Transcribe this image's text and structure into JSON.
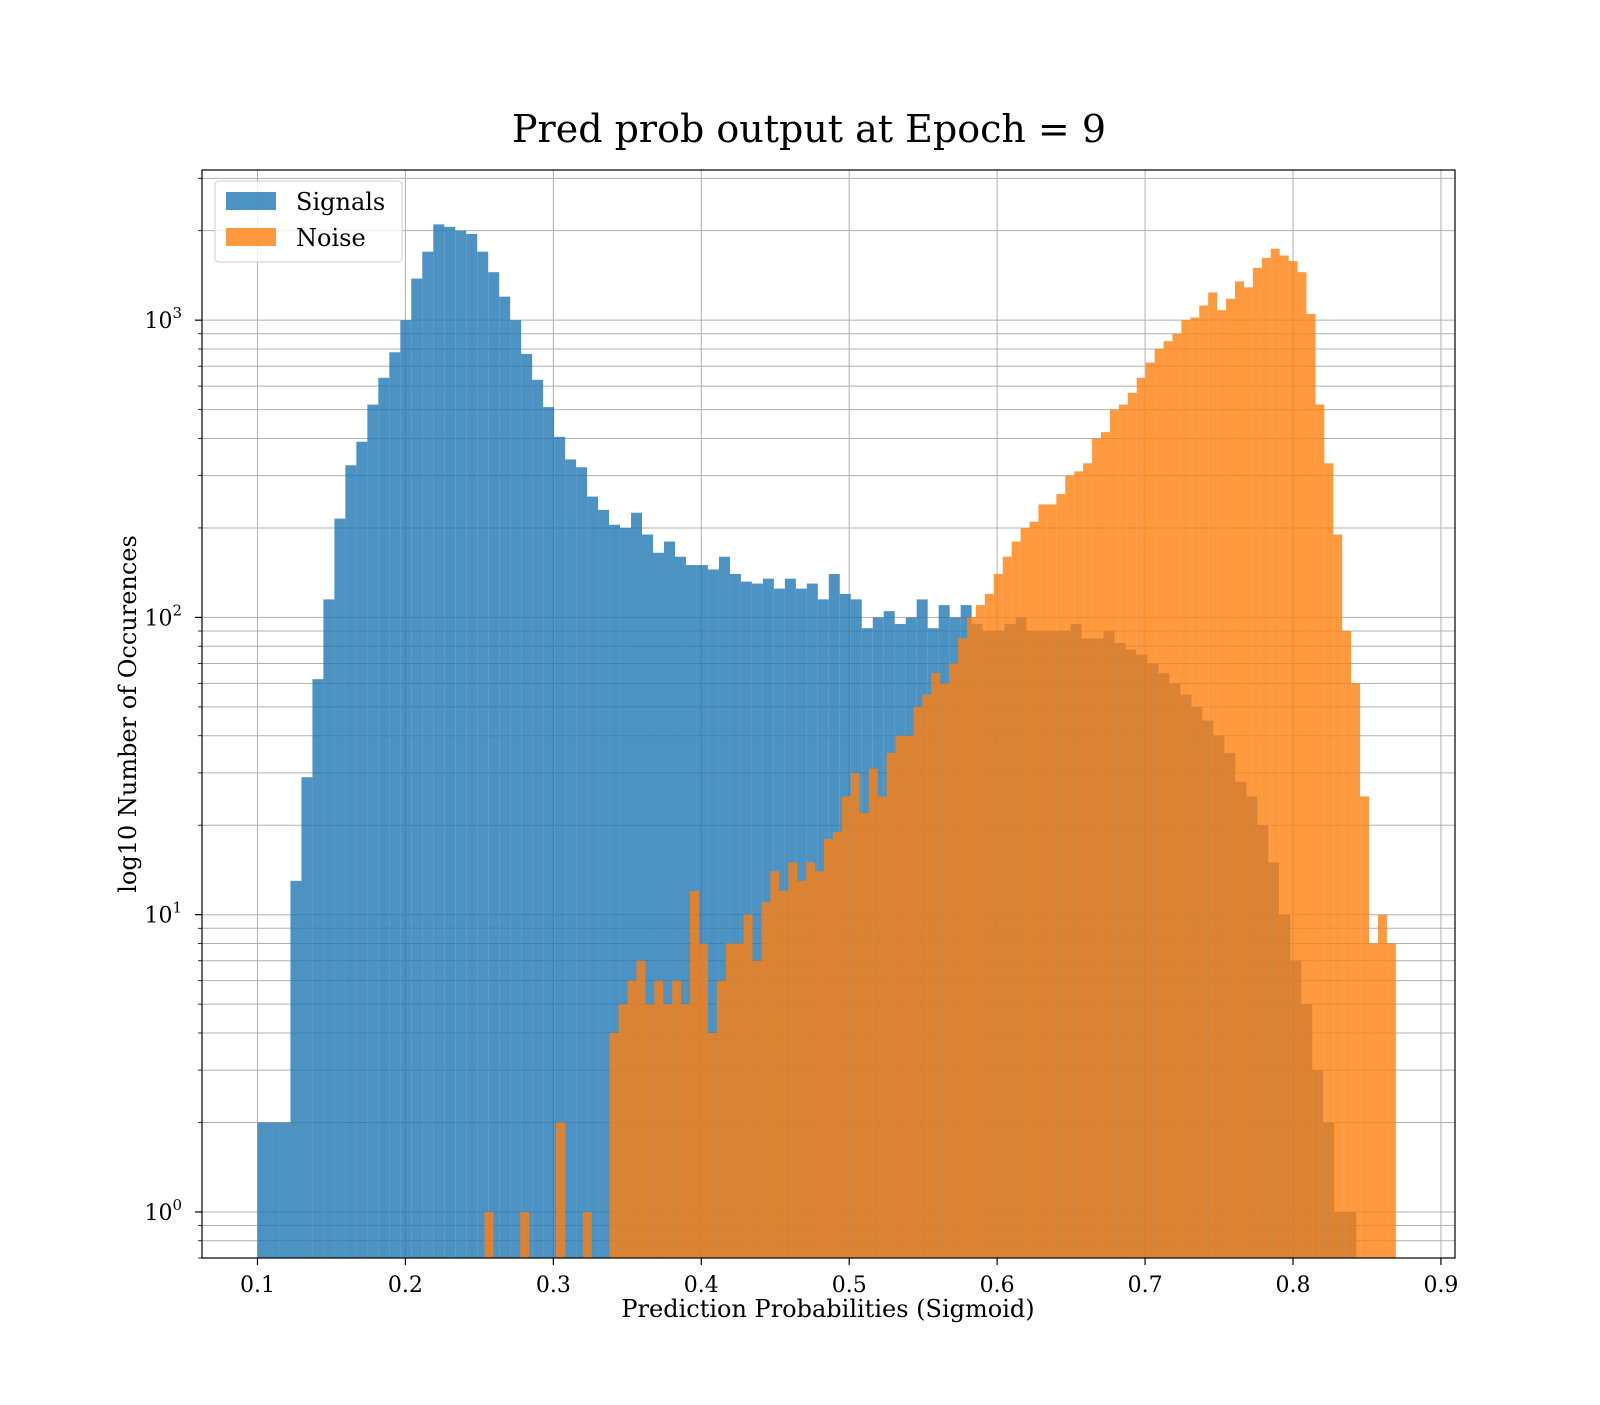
{
  "chart_data": {
    "type": "bar",
    "title": "Pred prob output at Epoch = 9",
    "xlabel": "Prediction Probabilities (Sigmoid)",
    "ylabel": "log10 Number of Occurences",
    "xlim": [
      0.0625,
      0.9095
    ],
    "ylim": [
      0.7,
      3200
    ],
    "yscale": "log",
    "grid": true,
    "grid_minor_y": true,
    "legend_position": "top-left",
    "x_ticks": [
      0.1,
      0.2,
      0.3,
      0.4,
      0.5,
      0.6,
      0.7,
      0.8,
      0.9
    ],
    "x_tick_labels": [
      "0.1",
      "0.2",
      "0.3",
      "0.4",
      "0.5",
      "0.6",
      "0.7",
      "0.8",
      "0.9"
    ],
    "y_ticks": [
      1,
      10,
      100,
      1000
    ],
    "y_tick_labels": [
      {
        "base": "10",
        "exp": "0"
      },
      {
        "base": "10",
        "exp": "1"
      },
      {
        "base": "10",
        "exp": "2"
      },
      {
        "base": "10",
        "exp": "3"
      }
    ],
    "series": [
      {
        "name": "Signals",
        "color": "#1f77b4",
        "opacity": 0.8,
        "bin_start": 0.1,
        "bin_end": 0.8427,
        "values": [
          2,
          2,
          2,
          13,
          29,
          62,
          115,
          215,
          325,
          390,
          520,
          640,
          780,
          1000,
          1380,
          1700,
          2100,
          2060,
          2000,
          1950,
          1700,
          1450,
          1200,
          1000,
          770,
          630,
          510,
          405,
          340,
          320,
          255,
          230,
          205,
          200,
          225,
          190,
          165,
          180,
          160,
          150,
          150,
          145,
          160,
          140,
          132,
          130,
          135,
          125,
          135,
          125,
          130,
          115,
          140,
          120,
          115,
          92,
          100,
          105,
          95,
          100,
          115,
          92,
          110,
          100,
          110,
          95,
          90,
          90,
          95,
          100,
          90,
          90,
          90,
          90,
          95,
          85,
          85,
          90,
          82,
          78,
          75,
          70,
          65,
          60,
          55,
          50,
          45,
          40,
          35,
          28,
          25,
          20,
          15,
          10,
          7,
          5,
          3,
          2,
          1,
          1
        ]
      },
      {
        "name": "Noise",
        "color": "#ff7f0e",
        "opacity": 0.8,
        "bin_start": 0.2535,
        "bin_end": 0.8695,
        "values": [
          1,
          0,
          0,
          0,
          1,
          0,
          0,
          0,
          2,
          0,
          0,
          1,
          0,
          0,
          4,
          5,
          6,
          7,
          5,
          6,
          5,
          6,
          5,
          12,
          8,
          4,
          6,
          8,
          8,
          10,
          7,
          11,
          14,
          12,
          15,
          13,
          15,
          14,
          18,
          19,
          25,
          30,
          22,
          31,
          25,
          35,
          40,
          40,
          50,
          55,
          65,
          60,
          70,
          85,
          100,
          110,
          120,
          140,
          160,
          180,
          200,
          210,
          240,
          240,
          260,
          300,
          310,
          330,
          400,
          420,
          500,
          520,
          570,
          640,
          720,
          800,
          850,
          900,
          1000,
          1020,
          1120,
          1240,
          1080,
          1180,
          1350,
          1290,
          1500,
          1620,
          1740,
          1650,
          1580,
          1450,
          1050,
          520,
          330,
          190,
          90,
          60,
          25,
          8,
          10,
          8
        ]
      }
    ]
  }
}
